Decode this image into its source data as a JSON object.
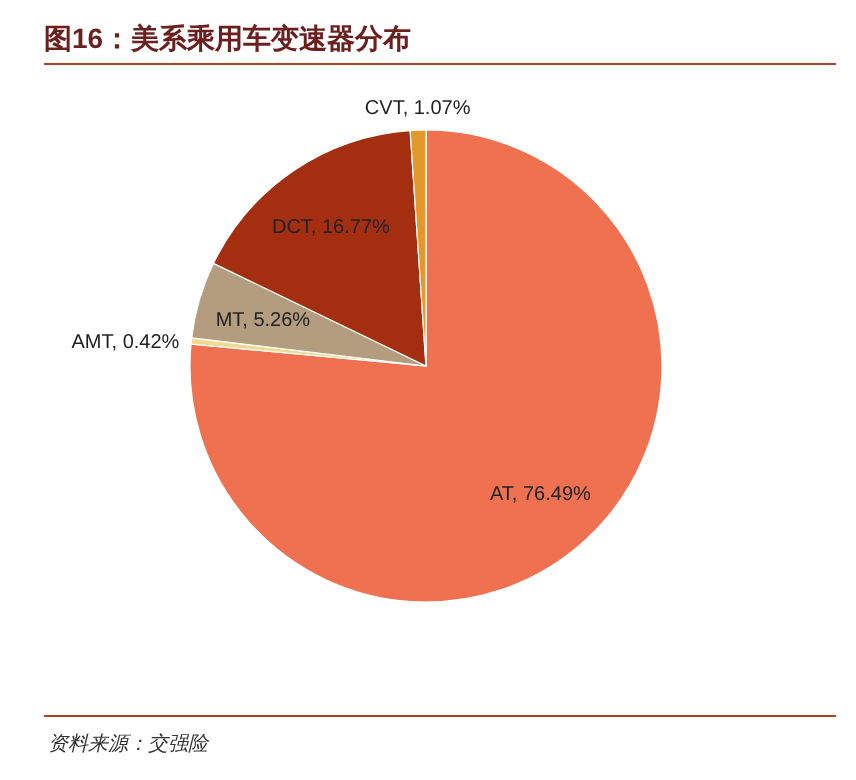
{
  "chart_data": {
    "type": "pie",
    "title": "图16：美系乘用车变速器分布",
    "categories": [
      "AT",
      "AMT",
      "MT",
      "DCT",
      "CVT"
    ],
    "values": [
      76.49,
      0.42,
      5.26,
      16.77,
      1.07
    ],
    "colors": [
      "#ef7150",
      "#f3d98f",
      "#b49d7e",
      "#a32f10",
      "#e3982b"
    ],
    "value_labels": [
      "76.49%",
      "0.42%",
      "5.26%",
      "16.77%",
      "1.07%"
    ],
    "annotations": [
      "资料来源：交强险"
    ],
    "legend": false
  }
}
